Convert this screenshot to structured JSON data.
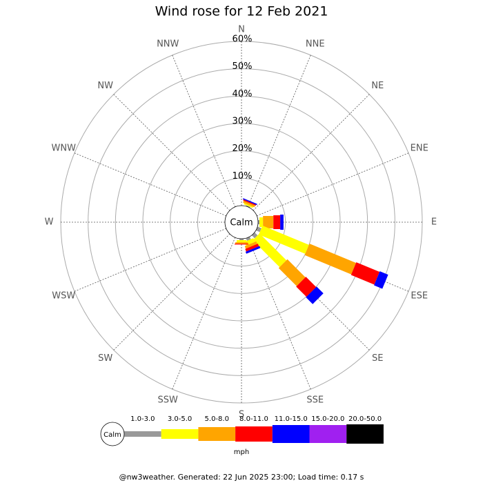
{
  "chart_data": {
    "type": "windrose",
    "title": "Wind rose for 12 Feb 2021",
    "categories": [
      "N",
      "NNE",
      "NE",
      "ENE",
      "E",
      "ESE",
      "SE",
      "SSE",
      "S",
      "SSW",
      "SW",
      "WSW",
      "W",
      "WNW",
      "NW",
      "NNW"
    ],
    "rlim": [
      0,
      60
    ],
    "rticks": [
      {
        "value": 10,
        "label": "10%"
      },
      {
        "value": 20,
        "label": "20%"
      },
      {
        "value": 30,
        "label": "30%"
      },
      {
        "value": 40,
        "label": "40%"
      },
      {
        "value": 50,
        "label": "50%"
      },
      {
        "value": 60,
        "label": "60%"
      }
    ],
    "calm_label": "Calm",
    "units_label": "mph",
    "series": [
      {
        "name": "1.0-3.0",
        "color": "#999999",
        "values": [
          0,
          0.3,
          0,
          0,
          0.5,
          1.5,
          1.5,
          1.0,
          0.5,
          0,
          0,
          0,
          0,
          0,
          0,
          0
        ]
      },
      {
        "name": "3.0-5.0",
        "color": "#ffff00",
        "values": [
          0,
          0.5,
          0,
          0,
          1.3,
          18.4,
          13.9,
          1.5,
          0.8,
          0,
          0,
          0,
          0,
          0,
          0,
          0
        ]
      },
      {
        "name": "5.0-8.0",
        "color": "#ffa500",
        "values": [
          0,
          0.7,
          0,
          0,
          3.8,
          18.4,
          9.3,
          1.0,
          0.5,
          0,
          0,
          0,
          0,
          0,
          0,
          0
        ]
      },
      {
        "name": "8.0-11.0",
        "color": "#ff0000",
        "values": [
          0,
          0.4,
          0,
          0,
          2.5,
          9.2,
          5.3,
          1.0,
          0.3,
          0,
          0,
          0,
          0,
          0,
          0,
          0
        ]
      },
      {
        "name": "11.0-15.0",
        "color": "#0000ff",
        "values": [
          0,
          0.4,
          0,
          0,
          1.2,
          3.3,
          3.5,
          0.8,
          0,
          0,
          0,
          0,
          0,
          0,
          0,
          0
        ]
      },
      {
        "name": "15.0-20.0",
        "color": "#a020f0",
        "values": [
          0,
          0,
          0,
          0,
          0,
          0,
          0,
          0,
          0,
          0,
          0,
          0,
          0,
          0,
          0,
          0
        ]
      },
      {
        "name": "20.0-50.0",
        "color": "#000000",
        "values": [
          0,
          0,
          0,
          0,
          0,
          0,
          0,
          0,
          0,
          0,
          0,
          0,
          0,
          0,
          0,
          0
        ]
      }
    ],
    "footer": "@nw3weather. Generated: 22 Jun 2025 23:00; Load time: 0.17 s"
  }
}
